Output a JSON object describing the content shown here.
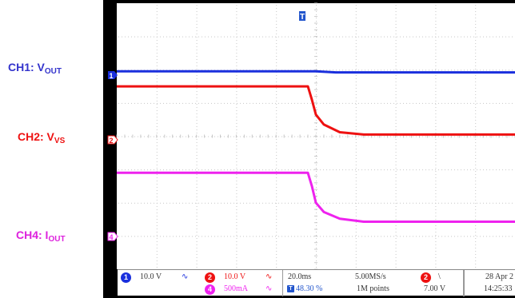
{
  "labels": {
    "ch1": {
      "main": "CH1: V",
      "sub": "OUT",
      "color": "#3333cc"
    },
    "ch2": {
      "main": "CH2: V",
      "sub": "VS",
      "color": "#ee1111"
    },
    "ch4": {
      "main": "CH4: I",
      "sub": "OUT",
      "color": "#dd22dd"
    }
  },
  "markers": {
    "trigger": "T",
    "ch1": "1",
    "ch2": "2",
    "ch4": "4"
  },
  "chart_data": {
    "type": "line",
    "grid": true,
    "x_divisions": 10,
    "y_divisions": 8,
    "series": [
      {
        "channel": "1",
        "color": "#1a2fdd",
        "points": [
          [
            0,
            5.95
          ],
          [
            0.5,
            5.95
          ],
          [
            0.55,
            5.92
          ],
          [
            1,
            5.92
          ]
        ]
      },
      {
        "channel": "2",
        "color": "#ee1111",
        "points": [
          [
            0,
            5.5
          ],
          [
            0.48,
            5.5
          ],
          [
            0.49,
            5.1
          ],
          [
            0.5,
            4.65
          ],
          [
            0.52,
            4.35
          ],
          [
            0.56,
            4.12
          ],
          [
            0.62,
            4.05
          ],
          [
            1,
            4.05
          ]
        ]
      },
      {
        "channel": "4",
        "color": "#ee22ee",
        "points": [
          [
            0,
            2.9
          ],
          [
            0.48,
            2.9
          ],
          [
            0.49,
            2.5
          ],
          [
            0.5,
            2.0
          ],
          [
            0.52,
            1.72
          ],
          [
            0.56,
            1.52
          ],
          [
            0.62,
            1.43
          ],
          [
            1,
            1.43
          ]
        ]
      }
    ]
  },
  "status": {
    "ch1_badge": "1",
    "ch1_scale": "10.0 V",
    "ch2_badge": "2",
    "ch2_scale": "10.0 V",
    "ch4_badge": "4",
    "ch4_scale": "500mA",
    "timebase": "20.0ms",
    "trigger_pos": "48.30 %",
    "sample_rate": "5.00MS/s",
    "record_length": "1M points",
    "trig_badge": "2",
    "trig_slope": "\\",
    "trig_level": "7.00 V",
    "date": "28 Apr 2",
    "time": "14:25:33"
  },
  "colors": {
    "ch1": "#1a2fdd",
    "ch2": "#ee1111",
    "ch4": "#ee22ee",
    "trigger": "#2255cc"
  }
}
